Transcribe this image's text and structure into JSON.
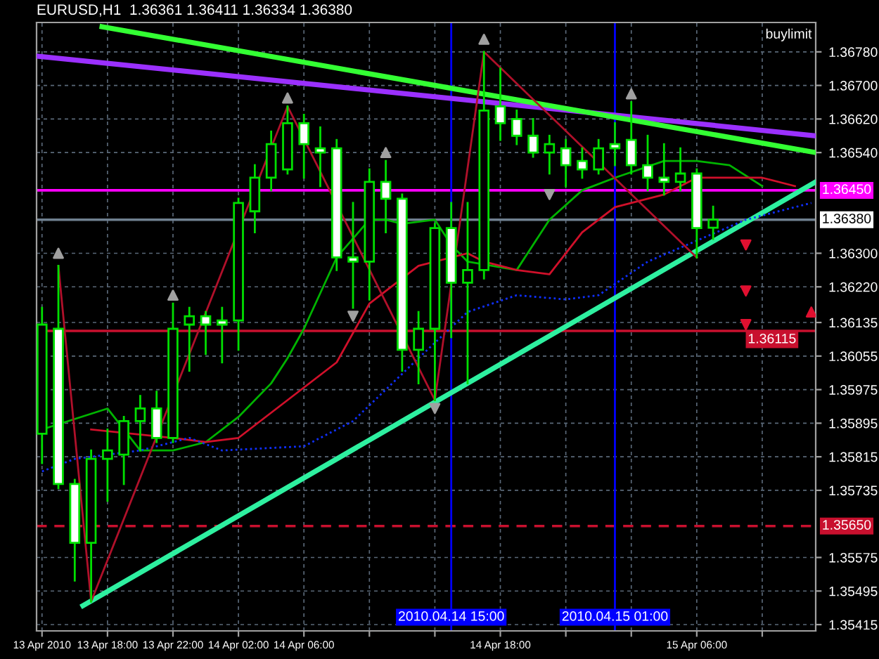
{
  "chart_data": {
    "type": "candlestick",
    "title": "EURUSD,H1  1.36361 1.36411 1.36334 1.36380",
    "annotations": [
      "buylimit"
    ],
    "xlim": [
      "2010-04-13T13:40",
      "2010-04-15T13:16"
    ],
    "xticks": [
      {
        "value": "2010-04-13T14:00",
        "label": "13 Apr 2010"
      },
      {
        "value": "2010-04-13T18:00",
        "label": "13 Apr 18:00"
      },
      {
        "value": "2010-04-13T22:00",
        "label": "13 Apr 22:00"
      },
      {
        "value": "2010-04-14T02:00",
        "label": "14 Apr 02:00"
      },
      {
        "value": "2010-04-14T06:00",
        "label": "14 Apr 06:00"
      },
      {
        "value": "2010-04-14T10:00",
        "label": null
      },
      {
        "value": "2010-04-14T14:00",
        "label": null
      },
      {
        "value": "2010-04-14T18:00",
        "label": "14 Apr 18:00"
      },
      {
        "value": "2010-04-14T22:00",
        "label": null
      },
      {
        "value": "2010-04-15T02:00",
        "label": null
      },
      {
        "value": "2010-04-15T06:00",
        "label": "15 Apr 06:00"
      },
      {
        "value": "2010-04-15T10:00",
        "label": null
      }
    ],
    "ylim": [
      1.354,
      1.3685
    ],
    "yticks": [
      {
        "value": 1.3678,
        "label": "1.36780"
      },
      {
        "value": 1.367,
        "label": "1.36700"
      },
      {
        "value": 1.3662,
        "label": "1.36620"
      },
      {
        "value": 1.3654,
        "label": "1.36540"
      },
      {
        "value": 1.363,
        "label": "1.36300"
      },
      {
        "value": 1.3622,
        "label": "1.36220"
      },
      {
        "value": 1.36135,
        "label": "1.36135"
      },
      {
        "value": 1.36055,
        "label": "1.36055"
      },
      {
        "value": 1.35975,
        "label": "1.35975"
      },
      {
        "value": 1.35895,
        "label": "1.35895"
      },
      {
        "value": 1.35815,
        "label": "1.35815"
      },
      {
        "value": 1.35735,
        "label": "1.35735"
      },
      {
        "value": 1.35575,
        "label": "1.35575"
      },
      {
        "value": 1.35495,
        "label": "1.35495"
      },
      {
        "value": 1.35415,
        "label": "1.35415"
      }
    ],
    "grid": true,
    "ref_lines": [
      {
        "axis": "y",
        "value": 1.3645,
        "label": "1.36450",
        "color": "#ff00ff",
        "line_style": "solid"
      },
      {
        "axis": "y",
        "value": 1.3638,
        "label": "1.36380",
        "color": "#708090",
        "line_style": "solid"
      },
      {
        "axis": "y",
        "value": 1.36115,
        "label": "1.36115",
        "color": "#c8102e",
        "line_style": "solid"
      },
      {
        "axis": "y",
        "value": 1.3565,
        "label": "1.35650",
        "color": "#c8102e",
        "line_style": "dashed"
      },
      {
        "axis": "x",
        "value": "2010-04-14T15:00",
        "label": "2010.04.14 15:00",
        "color": "#0000ff",
        "line_style": "solid"
      },
      {
        "axis": "x",
        "value": "2010-04-15T01:00",
        "label": "2010.04.15 01:00",
        "color": "#0000ff",
        "line_style": "solid"
      }
    ],
    "series": [
      {
        "type": "line",
        "color": "#9b30ff",
        "line_style": "solid",
        "x": [
          "2010-04-13T13:40",
          "2010-04-15T13:16"
        ],
        "values": [
          1.3677,
          1.3658
        ]
      },
      {
        "type": "line",
        "color": "#33ff33",
        "line_style": "solid",
        "x": [
          "2010-04-13T17:40",
          "2010-04-15T13:16"
        ],
        "values": [
          1.3684,
          1.3654
        ]
      },
      {
        "type": "line",
        "color": "#2ef0a0",
        "line_style": "solid",
        "x": [
          "2010-04-13T16:30",
          "2010-04-15T13:16"
        ],
        "values": [
          1.3546,
          1.3647
        ]
      },
      {
        "type": "line",
        "color": "#00b400",
        "line_style": "solid",
        "x": [
          "2010-04-13T14:00",
          "2010-04-13T18:00",
          "2010-04-13T20:00",
          "2010-04-13T22:00",
          "2010-04-14T00:00",
          "2010-04-14T02:00",
          "2010-04-14T04:00",
          "2010-04-14T05:00",
          "2010-04-14T06:00",
          "2010-04-14T08:00",
          "2010-04-14T10:00",
          "2010-04-14T11:00",
          "2010-04-14T12:00",
          "2010-04-14T14:00",
          "2010-04-14T15:00",
          "2010-04-14T16:00",
          "2010-04-14T19:00",
          "2010-04-14T20:00",
          "2010-04-14T21:00",
          "2010-04-14T23:00",
          "2010-04-15T01:00",
          "2010-04-15T04:00",
          "2010-04-15T06:00",
          "2010-04-15T08:00",
          "2010-04-15T10:00"
        ],
        "values": [
          1.3588,
          1.3593,
          1.3583,
          1.3583,
          1.3585,
          1.3591,
          1.3599,
          1.3605,
          1.3612,
          1.3629,
          1.3638,
          1.3638,
          1.3637,
          1.3638,
          1.3632,
          1.3628,
          1.3626,
          1.3632,
          1.3638,
          1.3645,
          1.3648,
          1.3652,
          1.3652,
          1.3651,
          1.3646
        ]
      },
      {
        "type": "line",
        "color": "#d0102a",
        "line_style": "solid",
        "x": [
          "2010-04-13T17:00",
          "2010-04-13T22:00",
          "2010-04-14T00:00",
          "2010-04-14T02:00",
          "2010-04-14T05:00",
          "2010-04-14T08:00",
          "2010-04-14T10:00",
          "2010-04-14T13:00",
          "2010-04-14T16:00",
          "2010-04-14T17:00",
          "2010-04-14T19:00",
          "2010-04-14T21:00",
          "2010-04-14T23:00",
          "2010-04-15T01:00",
          "2010-04-15T04:00",
          "2010-04-15T06:00",
          "2010-04-15T08:00",
          "2010-04-15T10:00",
          "2010-04-15T12:00"
        ],
        "values": [
          1.3588,
          1.3586,
          1.3585,
          1.3586,
          1.3595,
          1.3604,
          1.3618,
          1.3627,
          1.363,
          1.3628,
          1.3626,
          1.3625,
          1.3635,
          1.3641,
          1.3644,
          1.3648,
          1.3648,
          1.3648,
          1.3646
        ]
      },
      {
        "type": "line",
        "color": "#1030ff",
        "line_style": "dotted",
        "x": [
          "2010-04-13T14:00",
          "2010-04-13T16:00",
          "2010-04-13T20:00",
          "2010-04-13T23:00",
          "2010-04-14T01:00",
          "2010-04-14T06:00",
          "2010-04-14T09:00",
          "2010-04-14T13:00",
          "2010-04-14T16:00",
          "2010-04-14T19:00",
          "2010-04-14T22:00",
          "2010-04-15T00:00",
          "2010-04-15T03:00",
          "2010-04-15T06:00",
          "2010-04-15T09:00",
          "2010-04-15T13:00"
        ],
        "values": [
          1.3578,
          1.3581,
          1.3583,
          1.3586,
          1.3583,
          1.3584,
          1.359,
          1.3605,
          1.3616,
          1.362,
          1.3619,
          1.362,
          1.3628,
          1.3633,
          1.3638,
          1.3642
        ]
      },
      {
        "type": "line",
        "color": "#b0102a",
        "line_style": "solid",
        "x": [
          "2010-04-13T15:00",
          "2010-04-13T17:00",
          "2010-04-14T05:00",
          "2010-04-14T14:00",
          "2010-04-14T17:00",
          "2010-04-15T06:00"
        ],
        "values": [
          1.3627,
          1.3547,
          1.3665,
          1.3595,
          1.3678,
          1.3629
        ]
      },
      {
        "type": "candlestick",
        "color": "#00e000",
        "x": [
          "2010-04-13T14:00",
          "2010-04-13T15:00",
          "2010-04-13T16:00",
          "2010-04-13T17:00",
          "2010-04-13T18:00",
          "2010-04-13T19:00",
          "2010-04-13T20:00",
          "2010-04-13T21:00",
          "2010-04-13T22:00",
          "2010-04-13T23:00",
          "2010-04-14T00:00",
          "2010-04-14T01:00",
          "2010-04-14T02:00",
          "2010-04-14T03:00",
          "2010-04-14T04:00",
          "2010-04-14T05:00",
          "2010-04-14T06:00",
          "2010-04-14T07:00",
          "2010-04-14T08:00",
          "2010-04-14T09:00",
          "2010-04-14T10:00",
          "2010-04-14T11:00",
          "2010-04-14T12:00",
          "2010-04-14T13:00",
          "2010-04-14T14:00",
          "2010-04-14T15:00",
          "2010-04-14T16:00",
          "2010-04-14T17:00",
          "2010-04-14T18:00",
          "2010-04-14T19:00",
          "2010-04-14T20:00",
          "2010-04-14T21:00",
          "2010-04-14T22:00",
          "2010-04-14T23:00",
          "2010-04-15T00:00",
          "2010-04-15T01:00",
          "2010-04-15T02:00",
          "2010-04-15T03:00",
          "2010-04-15T04:00",
          "2010-04-15T05:00",
          "2010-04-15T06:00",
          "2010-04-15T07:00"
        ],
        "colors": [
          "#000000",
          "#ffffff",
          "#ffffff",
          "#000000",
          "#000000",
          "#000000",
          "#000000",
          "#ffffff",
          "#000000",
          "#000000",
          "#ffffff",
          "#ffffff",
          "#000000",
          "#000000",
          "#000000",
          "#000000",
          "#ffffff",
          "#ffffff",
          "#ffffff",
          "#ffffff",
          "#000000",
          "#ffffff",
          "#ffffff",
          "#000000",
          "#000000",
          "#ffffff",
          "#000000",
          "#000000",
          "#ffffff",
          "#ffffff",
          "#ffffff",
          "#000000",
          "#ffffff",
          "#ffffff",
          "#000000",
          "#ffffff",
          "#ffffff",
          "#ffffff",
          "#ffffff",
          "#000000",
          "#ffffff",
          "#000000"
        ],
        "ohlc": [
          [
            1.3587,
            1.3617,
            1.358,
            1.3613
          ],
          [
            1.3612,
            1.3627,
            1.3574,
            1.3575
          ],
          [
            1.3575,
            1.3576,
            1.3552,
            1.3561
          ],
          [
            1.3561,
            1.3583,
            1.3547,
            1.3581
          ],
          [
            1.3581,
            1.3588,
            1.3571,
            1.3583
          ],
          [
            1.3582,
            1.3591,
            1.3575,
            1.359
          ],
          [
            1.359,
            1.3596,
            1.3583,
            1.3593
          ],
          [
            1.3593,
            1.3597,
            1.3585,
            1.3586
          ],
          [
            1.3586,
            1.3618,
            1.3585,
            1.3612
          ],
          [
            1.3613,
            1.3617,
            1.3602,
            1.3615
          ],
          [
            1.3615,
            1.3616,
            1.3606,
            1.3613
          ],
          [
            1.3614,
            1.3617,
            1.3604,
            1.3613
          ],
          [
            1.3614,
            1.3643,
            1.3607,
            1.3642
          ],
          [
            1.364,
            1.3651,
            1.3635,
            1.3648
          ],
          [
            1.3648,
            1.3659,
            1.3645,
            1.3656
          ],
          [
            1.365,
            1.3665,
            1.3649,
            1.3661
          ],
          [
            1.3661,
            1.3663,
            1.3648,
            1.3656
          ],
          [
            1.3655,
            1.366,
            1.3646,
            1.3654
          ],
          [
            1.3655,
            1.3657,
            1.3626,
            1.3629
          ],
          [
            1.3629,
            1.3642,
            1.3617,
            1.3628
          ],
          [
            1.3628,
            1.365,
            1.3619,
            1.3647
          ],
          [
            1.3647,
            1.3652,
            1.3635,
            1.3643
          ],
          [
            1.3643,
            1.3644,
            1.3602,
            1.3607
          ],
          [
            1.3607,
            1.3616,
            1.3599,
            1.3612
          ],
          [
            1.3612,
            1.3637,
            1.3595,
            1.3636
          ],
          [
            1.3636,
            1.3642,
            1.361,
            1.3623
          ],
          [
            1.3623,
            1.3642,
            1.3599,
            1.3626
          ],
          [
            1.3626,
            1.3678,
            1.3624,
            1.3664
          ],
          [
            1.3665,
            1.3674,
            1.3657,
            1.3661
          ],
          [
            1.3662,
            1.3664,
            1.3656,
            1.3658
          ],
          [
            1.3658,
            1.3662,
            1.3653,
            1.3654
          ],
          [
            1.3654,
            1.3658,
            1.3649,
            1.3656
          ],
          [
            1.3655,
            1.3657,
            1.3646,
            1.3651
          ],
          [
            1.3652,
            1.3655,
            1.3648,
            1.365
          ],
          [
            1.365,
            1.3657,
            1.3649,
            1.3655
          ],
          [
            1.3656,
            1.3661,
            1.3651,
            1.3655
          ],
          [
            1.3657,
            1.3666,
            1.3649,
            1.3651
          ],
          [
            1.3651,
            1.3658,
            1.3645,
            1.3648
          ],
          [
            1.3648,
            1.3656,
            1.3644,
            1.3647
          ],
          [
            1.3647,
            1.3655,
            1.3645,
            1.3649
          ],
          [
            1.3649,
            1.365,
            1.3629,
            1.3636
          ],
          [
            1.36361,
            1.36411,
            1.36334,
            1.3638
          ]
        ]
      },
      {
        "type": "scatter",
        "color": "#a0a0a0",
        "marker": "triangle",
        "x": [
          "2010-04-13T15:00",
          "2010-04-13T22:00",
          "2010-04-14T05:00",
          "2010-04-14T11:00",
          "2010-04-14T17:00",
          "2010-04-15T02:00"
        ],
        "values": [
          1.363,
          1.362,
          1.3667,
          1.3654,
          1.3681,
          1.3668
        ]
      },
      {
        "type": "scatter",
        "color": "#a0a0a0",
        "marker": "triangle-down",
        "x": [
          "2010-04-14T09:00",
          "2010-04-14T14:00",
          "2010-04-14T21:00"
        ],
        "values": [
          1.3615,
          1.3593,
          1.3644
        ]
      },
      {
        "type": "scatter",
        "color": "#e01030",
        "marker": "triangle-down",
        "x": [
          "2010-04-15T09:00",
          "2010-04-15T09:00",
          "2010-04-15T09:00"
        ],
        "values": [
          1.3632,
          1.3621,
          1.3613
        ]
      },
      {
        "type": "scatter",
        "color": "#e01030",
        "marker": "triangle",
        "x": [
          "2010-04-15T13:00"
        ],
        "values": [
          1.3616
        ]
      }
    ]
  }
}
